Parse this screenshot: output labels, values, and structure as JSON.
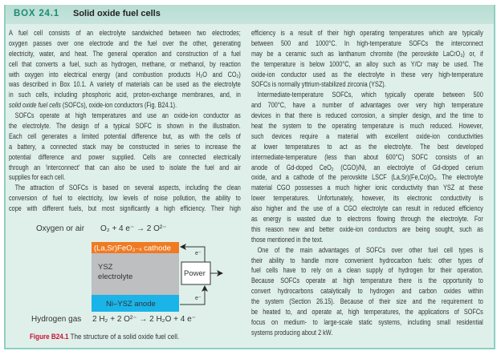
{
  "box": {
    "label": "BOX 24.1",
    "title": "Solid oxide fuel cells"
  },
  "left_column": [
    {
      "text": "A fuel cell consists of an electrolyte sandwiched between two electrodes;"
    },
    {
      "text": "oxygen passes over one electrode and the fuel over the other, generating"
    },
    {
      "text": "electricity, water, and heat. The general operation and construction of a fuel"
    },
    {
      "text": "cell that converts a fuel, such as hydrogen, methane, or methanol, by reaction"
    },
    {
      "text": "with oxygen into electrical energy (and combustion products H₂O and CO₂)"
    },
    {
      "text": "was described in Box 10.1. A variety of materials can be used as the electrolyte"
    },
    {
      "text": "in such cells, including phosphoric acid, proton-exchange membranes, and, in"
    },
    {
      "italic": "solid oxide fuel cells",
      "text": " (SOFCs), oxide-ion conductors (Fig. B24.1).",
      "end": true
    },
    {
      "text": "SOFCs operate at high temperatures and use an oxide-ion conductor as",
      "indent": true
    },
    {
      "text": "the electrolyte. The design of a typical SOFC is shown in the illustration."
    },
    {
      "text": "Each cell generates a limited potential difference but, as with the cells of"
    },
    {
      "text": "a battery, a connected stack may be constructed in series to increase the"
    },
    {
      "text": "potential difference and power supplied. Cells are connected electrically"
    },
    {
      "text": "through an ‘interconnect’ that can also be used to isolate the fuel and air"
    },
    {
      "text": "supplies for each cell.",
      "end": true
    },
    {
      "text": "The attraction of SOFCs is based on several aspects, including the clean",
      "indent": true
    },
    {
      "text": "conversion of fuel to electricity, low levels of noise pollution, the ability to"
    },
    {
      "text": "cope with different fuels, but most significantly a high efficiency. Their high"
    }
  ],
  "right_column": [
    {
      "text": "efficiency is a result of their high operating temperatures which are typically"
    },
    {
      "text": "between 500 and 1000°C. In high-temperature SOFCs the interconnect"
    },
    {
      "text": "may be a ceramic such as lanthanum chromite (the perovskite LaCrO₃) or, if"
    },
    {
      "text": "the temperature is below 1000°C, an alloy such as Y/Cr may be used. The"
    },
    {
      "text": "oxide-ion conductor used as the electrolyte in these very high-temperature"
    },
    {
      "text": "SOFCs is normally yttrium-stabilized zirconia (YSZ).",
      "end": true
    },
    {
      "text": "Intermediate-temperature SOFCs, which typically operate between 500",
      "indent": true
    },
    {
      "text": "and 700°C, have a number of advantages over very high temperature"
    },
    {
      "text": "devices in that there is reduced corrosion, a simpler design, and the time to"
    },
    {
      "text": "heat the system to the operating temperature is much reduced. However,"
    },
    {
      "text": "such devices require a material with excellent oxide-ion conductivities"
    },
    {
      "text": "at lower temperatures to act as the electrolyte. The best developed"
    },
    {
      "text": "intermediate-temperature (less than about 600°C) SOFC consists of an"
    },
    {
      "text": "anode of Gd-doped CeO₂ (CGO)/Ni, an electrolyte of Gd-doped cerium"
    },
    {
      "text": "oxide, and a cathode of the perovskite LSCF (La,Sr)(Fe,Co)O₃. The electrolyte"
    },
    {
      "text": "material CGO possesses a much higher ionic conductivity than YSZ at these"
    },
    {
      "text": "lower temperatures. Unfortunately, however, its electronic conductivity is"
    },
    {
      "text": "also higher and the use of a CGO electrolyte can result in reduced efficiency"
    },
    {
      "text": "as energy is wasted due to electrons flowing through the electrolyte. For"
    },
    {
      "text": "this reason new and better oxide-ion conductors are being sought, such as"
    },
    {
      "text": "those mentioned in the text.",
      "end": true
    },
    {
      "text": "One of the main advantages of SOFCs over other fuel cell types is",
      "indent": true
    },
    {
      "text": "their ability to handle more convenient hydrocarbon fuels: other types of"
    },
    {
      "text": "fuel cells have to rely on a clean supply of hydrogen for their operation."
    },
    {
      "text": "Because SOFCs operate at high temperature there is the opportunity to"
    },
    {
      "text": "convert hydrocarbons catalytically to hydrogen and carbon oxides within"
    },
    {
      "text": "the system (Section 26.15). Because of their size and the requirement to"
    },
    {
      "text": "be heated to, and operate at, high temperatures, the applications of SOFCs"
    },
    {
      "text": "focus on medium- to large-scale static systems, including small residential"
    },
    {
      "text": "systems producing about 2 kW.",
      "end": true
    }
  ],
  "figure": {
    "oxygen_label": "Oxygen or air",
    "cathode_reaction": "O₂ + 4 e⁻ → 2 O²⁻",
    "cathode": "(La,Sr)FeO₃₋ₓ cathode",
    "electrolyte_line1": "YSZ",
    "electrolyte_line2": "electrolyte",
    "anode": "Ni–YSZ anode",
    "power": "Power",
    "electron_top": "e⁻",
    "electron_bottom": "e⁻",
    "hydrogen_label": "Hydrogen gas",
    "anode_reaction": "2 H₂ + 2 O²⁻ → 2 H₂O + 4 e⁻",
    "caption_label": "Figure B24.1",
    "caption_text": " The structure of a solid oxide fuel cell.",
    "colors": {
      "cathode": "#f07a22",
      "electrolyte": "#bdbfc1",
      "anode": "#1ab4e8",
      "caption": "#c8102e"
    }
  }
}
